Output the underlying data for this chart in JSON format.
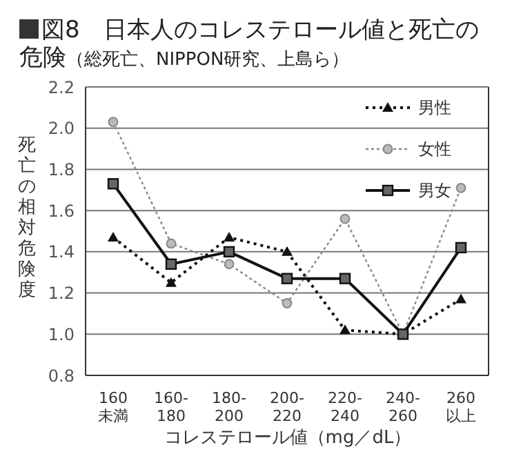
{
  "chart_data": {
    "type": "line",
    "title": "図8　日本人のコレステロール値と死亡の危険",
    "subtitle": "（総死亡、NIPPON研究、上島ら）",
    "xlabel": "コレステロール値（mg／dL）",
    "ylabel": "死亡の相対危険度",
    "categories": [
      "160\n未満",
      "160-\n180",
      "180-\n200",
      "200-\n220",
      "220-\n240",
      "240-\n260",
      "260\n以上"
    ],
    "series": [
      {
        "name": "男性",
        "color": "#111111",
        "marker": "triangle",
        "line_style": "dotted",
        "values": [
          1.47,
          1.25,
          1.47,
          1.4,
          1.02,
          1.0,
          1.17
        ]
      },
      {
        "name": "女性",
        "color": "#888888",
        "marker": "circle",
        "line_style": "dotted",
        "values": [
          2.03,
          1.44,
          1.34,
          1.15,
          1.56,
          1.0,
          1.71
        ]
      },
      {
        "name": "男女",
        "color": "#111111",
        "marker": "square",
        "line_style": "solid",
        "values": [
          1.73,
          1.34,
          1.4,
          1.27,
          1.27,
          1.0,
          1.42
        ]
      }
    ],
    "ylim": [
      0.8,
      2.2
    ],
    "yticks": [
      0.8,
      {
        "value": 1,
        "label": "1.0"
      },
      1.2,
      1.4,
      1.6,
      1.8,
      {
        "value": 2,
        "label": "2.0"
      },
      2.2
    ],
    "grid": "y",
    "legend": "top right"
  }
}
